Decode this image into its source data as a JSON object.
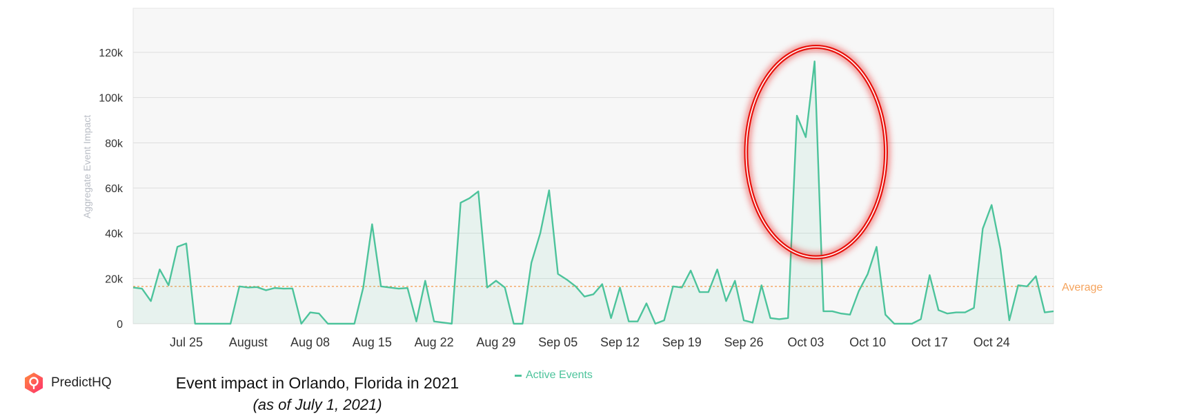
{
  "brand": {
    "name": "PredictHQ"
  },
  "caption": {
    "title": "Event impact in Orlando, Florida in 2021",
    "subtitle": "(as of July 1, 2021)"
  },
  "colors": {
    "line": "#4cc39b",
    "average": "#f5a35c",
    "highlight": "#e8120c",
    "grid": "#dddddd",
    "plot_bg": "#f7f7f7"
  },
  "chart_data": {
    "type": "area",
    "ylabel": "Aggregate Event Impact",
    "ylim": [
      0,
      130000
    ],
    "yticks": [
      0,
      20000,
      40000,
      60000,
      80000,
      100000,
      120000
    ],
    "ytick_labels": [
      "0",
      "20k",
      "40k",
      "60k",
      "80k",
      "100k",
      "120k"
    ],
    "x_range": [
      "2021-07-19",
      "2021-10-31"
    ],
    "xtick_labels": [
      {
        "date": "2021-07-25",
        "label": "Jul 25"
      },
      {
        "date": "2021-08-01",
        "label": "August"
      },
      {
        "date": "2021-08-08",
        "label": "Aug 08"
      },
      {
        "date": "2021-08-15",
        "label": "Aug 15"
      },
      {
        "date": "2021-08-22",
        "label": "Aug 22"
      },
      {
        "date": "2021-08-29",
        "label": "Aug 29"
      },
      {
        "date": "2021-09-05",
        "label": "Sep 05"
      },
      {
        "date": "2021-09-12",
        "label": "Sep 12"
      },
      {
        "date": "2021-09-19",
        "label": "Sep 19"
      },
      {
        "date": "2021-09-26",
        "label": "Sep 26"
      },
      {
        "date": "2021-10-03",
        "label": "Oct 03"
      },
      {
        "date": "2021-10-10",
        "label": "Oct 10"
      },
      {
        "date": "2021-10-17",
        "label": "Oct 17"
      },
      {
        "date": "2021-10-24",
        "label": "Oct 24"
      }
    ],
    "average": {
      "value": 16500,
      "label": "Average"
    },
    "legend": {
      "position": "bottom-center"
    },
    "grid": true,
    "series": [
      {
        "name": "Active Events",
        "points": [
          [
            "2021-07-19",
            16000
          ],
          [
            "2021-07-20",
            15500
          ],
          [
            "2021-07-21",
            10000
          ],
          [
            "2021-07-22",
            24000
          ],
          [
            "2021-07-23",
            17000
          ],
          [
            "2021-07-24",
            34000
          ],
          [
            "2021-07-25",
            35500
          ],
          [
            "2021-07-26",
            0
          ],
          [
            "2021-07-27",
            0
          ],
          [
            "2021-07-28",
            0
          ],
          [
            "2021-07-29",
            0
          ],
          [
            "2021-07-30",
            0
          ],
          [
            "2021-07-31",
            16500
          ],
          [
            "2021-08-01",
            16000
          ],
          [
            "2021-08-02",
            16200
          ],
          [
            "2021-08-03",
            14800
          ],
          [
            "2021-08-04",
            15800
          ],
          [
            "2021-08-05",
            15500
          ],
          [
            "2021-08-06",
            15600
          ],
          [
            "2021-08-07",
            0
          ],
          [
            "2021-08-08",
            5000
          ],
          [
            "2021-08-09",
            4500
          ],
          [
            "2021-08-10",
            0
          ],
          [
            "2021-08-11",
            0
          ],
          [
            "2021-08-12",
            0
          ],
          [
            "2021-08-13",
            0
          ],
          [
            "2021-08-14",
            16000
          ],
          [
            "2021-08-15",
            44000
          ],
          [
            "2021-08-16",
            16500
          ],
          [
            "2021-08-17",
            16000
          ],
          [
            "2021-08-18",
            15500
          ],
          [
            "2021-08-19",
            15800
          ],
          [
            "2021-08-20",
            1000
          ],
          [
            "2021-08-21",
            19000
          ],
          [
            "2021-08-22",
            1000
          ],
          [
            "2021-08-23",
            500
          ],
          [
            "2021-08-24",
            0
          ],
          [
            "2021-08-25",
            53500
          ],
          [
            "2021-08-26",
            55500
          ],
          [
            "2021-08-27",
            58500
          ],
          [
            "2021-08-28",
            16000
          ],
          [
            "2021-08-29",
            19000
          ],
          [
            "2021-08-30",
            16000
          ],
          [
            "2021-08-31",
            0
          ],
          [
            "2021-09-01",
            0
          ],
          [
            "2021-09-02",
            27000
          ],
          [
            "2021-09-03",
            40000
          ],
          [
            "2021-09-04",
            59000
          ],
          [
            "2021-09-05",
            22000
          ],
          [
            "2021-09-06",
            19500
          ],
          [
            "2021-09-07",
            16500
          ],
          [
            "2021-09-08",
            12000
          ],
          [
            "2021-09-09",
            13000
          ],
          [
            "2021-09-10",
            17500
          ],
          [
            "2021-09-11",
            2500
          ],
          [
            "2021-09-12",
            16000
          ],
          [
            "2021-09-13",
            1000
          ],
          [
            "2021-09-14",
            1000
          ],
          [
            "2021-09-15",
            9000
          ],
          [
            "2021-09-16",
            0
          ],
          [
            "2021-09-17",
            1500
          ],
          [
            "2021-09-18",
            16500
          ],
          [
            "2021-09-19",
            16000
          ],
          [
            "2021-09-20",
            23500
          ],
          [
            "2021-09-21",
            14000
          ],
          [
            "2021-09-22",
            14000
          ],
          [
            "2021-09-23",
            24000
          ],
          [
            "2021-09-24",
            10000
          ],
          [
            "2021-09-25",
            19000
          ],
          [
            "2021-09-26",
            1500
          ],
          [
            "2021-09-27",
            500
          ],
          [
            "2021-09-28",
            17000
          ],
          [
            "2021-09-29",
            2500
          ],
          [
            "2021-09-30",
            2000
          ],
          [
            "2021-10-01",
            2500
          ],
          [
            "2021-10-02",
            92000
          ],
          [
            "2021-10-03",
            82500
          ],
          [
            "2021-10-04",
            116000
          ],
          [
            "2021-10-05",
            5500
          ],
          [
            "2021-10-06",
            5500
          ],
          [
            "2021-10-07",
            4500
          ],
          [
            "2021-10-08",
            4000
          ],
          [
            "2021-10-09",
            14500
          ],
          [
            "2021-10-10",
            22000
          ],
          [
            "2021-10-11",
            34000
          ],
          [
            "2021-10-12",
            4000
          ],
          [
            "2021-10-13",
            0
          ],
          [
            "2021-10-14",
            0
          ],
          [
            "2021-10-15",
            0
          ],
          [
            "2021-10-16",
            2000
          ],
          [
            "2021-10-17",
            21500
          ],
          [
            "2021-10-18",
            6000
          ],
          [
            "2021-10-19",
            4500
          ],
          [
            "2021-10-20",
            5000
          ],
          [
            "2021-10-21",
            5000
          ],
          [
            "2021-10-22",
            7000
          ],
          [
            "2021-10-23",
            42000
          ],
          [
            "2021-10-24",
            52500
          ],
          [
            "2021-10-25",
            33000
          ],
          [
            "2021-10-26",
            1500
          ],
          [
            "2021-10-27",
            17000
          ],
          [
            "2021-10-28",
            16500
          ],
          [
            "2021-10-29",
            21000
          ],
          [
            "2021-10-30",
            5000
          ],
          [
            "2021-10-31",
            5500
          ]
        ]
      }
    ],
    "annotations": [
      {
        "type": "ellipse-highlight",
        "x_range": [
          "2021-09-30",
          "2021-10-08"
        ],
        "y_range": [
          30000,
          120000
        ]
      }
    ]
  }
}
